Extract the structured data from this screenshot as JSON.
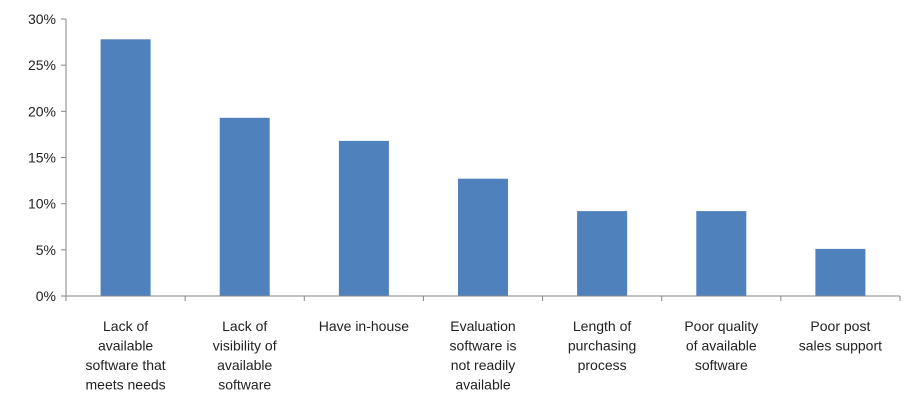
{
  "chart_data": {
    "type": "bar",
    "title": "",
    "xlabel": "",
    "ylabel": "",
    "categories": [
      "Lack of available software that meets needs",
      "Lack of visibility of available software",
      "Have in-house",
      "Evaluation software is not readily available",
      "Length of purchasing process",
      "Poor quality of available software",
      "Poor post sales support"
    ],
    "category_lines": [
      [
        "Lack of",
        "available",
        "software that",
        "meets needs"
      ],
      [
        "Lack of",
        "visibility of",
        "available",
        "software"
      ],
      [
        "Have in-house"
      ],
      [
        "Evaluation",
        "software is",
        "not readily",
        "available"
      ],
      [
        "Length of",
        "purchasing",
        "process"
      ],
      [
        "Poor quality",
        "of available",
        "software"
      ],
      [
        "Poor post",
        "sales support"
      ]
    ],
    "values": [
      27.8,
      19.3,
      16.8,
      12.7,
      9.2,
      9.2,
      5.1
    ],
    "ylim": [
      0,
      30
    ],
    "ytick_values": [
      0,
      5,
      10,
      15,
      20,
      25,
      30
    ],
    "ytick_labels": [
      "0%",
      "5%",
      "10%",
      "15%",
      "20%",
      "25%",
      "30%"
    ],
    "grid": false,
    "legend": "none",
    "bar_color": "#4F81BD",
    "axis_color": "#868686"
  }
}
